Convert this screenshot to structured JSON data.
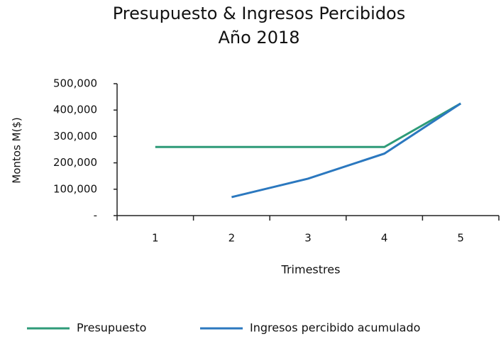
{
  "chart_data": {
    "type": "line",
    "title": "Presupuesto & Ingresos Percibidos",
    "subtitle": "Año 2018",
    "y_label": "Montos  M($)",
    "x_label": "Trimestres",
    "categories": [
      "1",
      "2",
      "3",
      "4",
      "5"
    ],
    "series": [
      {
        "name": "Presupuesto",
        "color": "#2e9b78",
        "values": [
          260000,
          260000,
          260000,
          260000,
          425000
        ]
      },
      {
        "name": "Ingresos percibido acumulado",
        "color": "#2b78bf",
        "values": [
          null,
          70000,
          140000,
          235000,
          425000
        ]
      }
    ],
    "ylim": [
      0,
      500000
    ],
    "yticks": [
      {
        "value": 0,
        "label": "-"
      },
      {
        "value": 100000,
        "label": "100,000"
      },
      {
        "value": 200000,
        "label": "200,000"
      },
      {
        "value": 300000,
        "label": "300,000"
      },
      {
        "value": 400000,
        "label": "400,000"
      },
      {
        "value": 500000,
        "label": "500,000"
      }
    ],
    "grid": false,
    "legend": "bottom"
  }
}
